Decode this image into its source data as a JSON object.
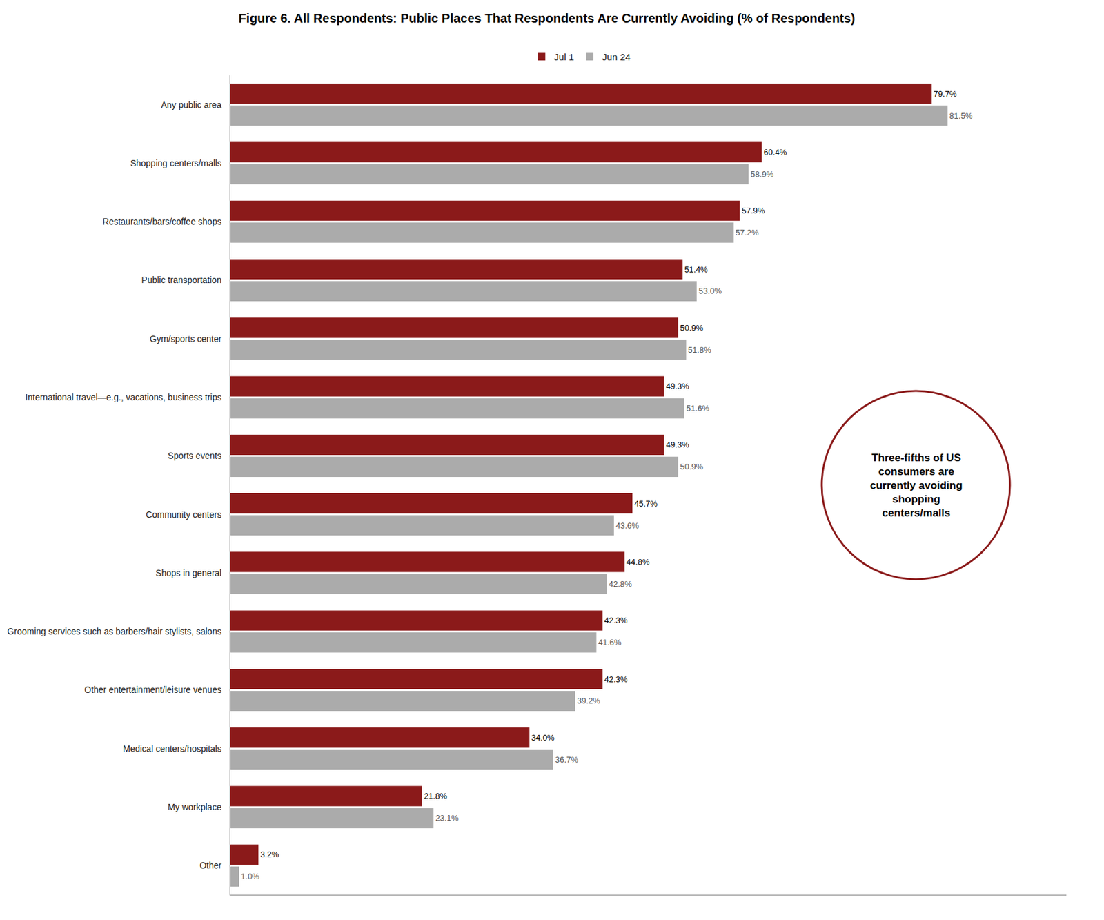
{
  "chart_data": {
    "type": "bar",
    "orientation": "horizontal",
    "title": "Figure 6. All Respondents: Public Places That Respondents Are Currently Avoiding (% of Respondents)",
    "categories": [
      "Any public area",
      "Shopping centers/malls",
      "Restaurants/bars/coffee shops",
      "Public transportation",
      "Gym/sports center",
      "International travel—e.g., vacations, business trips",
      "Sports events",
      "Community centers",
      "Shops in general",
      "Grooming services such as barbers/hair stylists, salons",
      "Other entertainment/leisure venues",
      "Medical centers/hospitals",
      "My workplace",
      "Other"
    ],
    "series": [
      {
        "name": "Jul 1",
        "color": "#8B1A1A",
        "values": [
          79.7,
          60.4,
          57.9,
          51.4,
          50.9,
          49.3,
          49.3,
          45.7,
          44.8,
          42.3,
          42.3,
          34.0,
          21.8,
          3.2
        ],
        "value_labels": [
          "79.7%",
          "60.4%",
          "57.9%",
          "51.4%",
          "50.9%",
          "49.3%",
          "49.3%",
          "45.7%",
          "44.8%",
          "42.3%",
          "42.3%",
          "34.0%",
          "21.8%",
          "3.2%"
        ]
      },
      {
        "name": "Jun 24",
        "color": "#ABABAB",
        "values": [
          81.5,
          58.9,
          57.2,
          53.0,
          51.8,
          51.6,
          50.9,
          43.6,
          42.8,
          41.6,
          39.2,
          36.7,
          23.1,
          1.0
        ],
        "value_labels": [
          "81.5%",
          "58.9%",
          "57.2%",
          "53.0%",
          "51.8%",
          "51.6%",
          "50.9%",
          "43.6%",
          "42.8%",
          "41.6%",
          "39.2%",
          "36.7%",
          "23.1%",
          "1.0%"
        ]
      }
    ],
    "xlim": [
      0,
      95
    ],
    "tick_labels": "y",
    "data_labels": true,
    "grid": false,
    "legend": "top",
    "annotation": "Three-fifths of US\nconsumers are\ncurrently avoiding\nshopping\ncenters/malls"
  }
}
